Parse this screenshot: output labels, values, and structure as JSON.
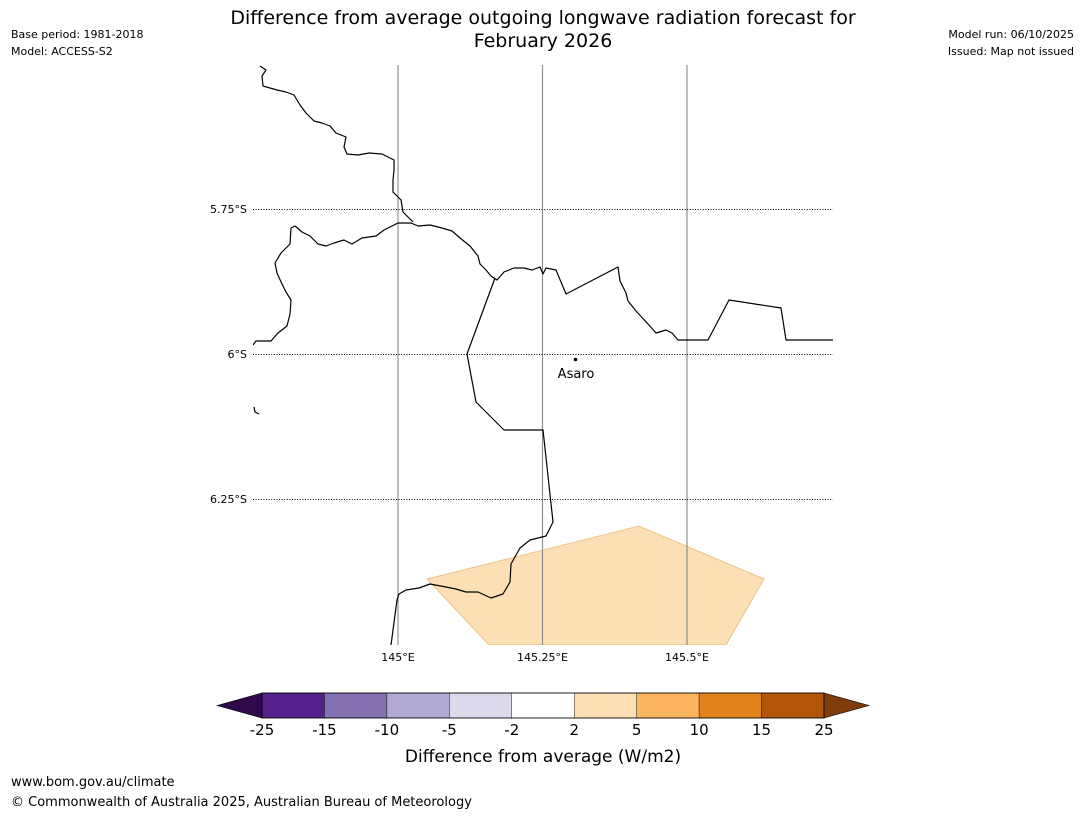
{
  "header": {
    "title_line1": "Difference from average outgoing longwave radiation forecast for",
    "title_line2": "February 2026",
    "base_period": "Base period: 1981-2018",
    "model": "Model: ACCESS-S2",
    "model_run": "Model run: 06/10/2025",
    "issued": "Issued: Map not issued"
  },
  "map": {
    "lat_labels": [
      "5.75°S",
      "6°S",
      "6.25°S"
    ],
    "lon_labels": [
      "145°E",
      "145.25°E",
      "145.5°E"
    ],
    "place_name": "Asaro",
    "anomaly_fill_color": "#fddfb5",
    "anomaly_category": "2 to 5"
  },
  "colorbar": {
    "title": "Difference from average (W/m2)",
    "tick_labels": [
      "-25",
      "-15",
      "-10",
      "-5",
      "-2",
      "2",
      "5",
      "10",
      "15",
      "25"
    ],
    "colors": [
      "#54208a",
      "#8270b0",
      "#b1a9d3",
      "#dadaeb",
      "#ffffff",
      "#fddfb5",
      "#fbb55f",
      "#e2831c",
      "#b25508"
    ],
    "under_color": "#2f0a4a",
    "over_color": "#7f3b08"
  },
  "footer": {
    "url": "www.bom.gov.au/climate",
    "copyright": "© Commonwealth of Australia 2025, Australian Bureau of Meteorology"
  }
}
